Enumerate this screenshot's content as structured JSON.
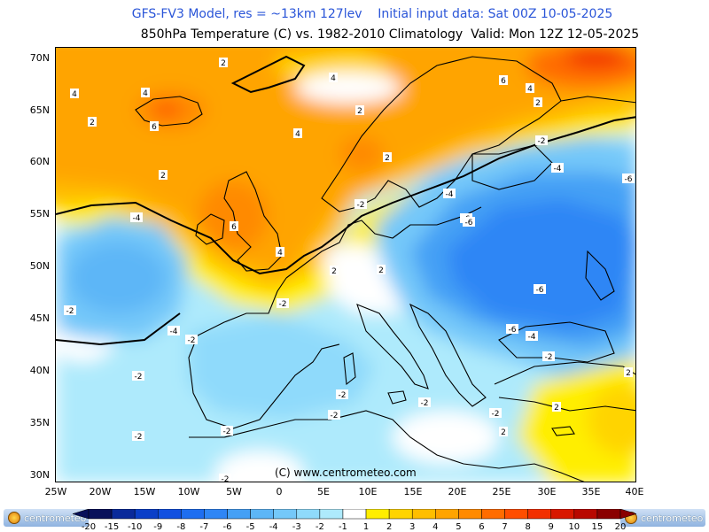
{
  "header": {
    "line1": "GFS-FV3 Model, res = ~13km 127lev    Initial input data: Sat 00Z 10-05-2025",
    "line2": "850hPa Temperature (C) vs. 1982-2010 Climatology  Valid: Mon 12Z 12-05-2025"
  },
  "map": {
    "copyright": "(C) www.centrometeo.com",
    "lat_labels": [
      "70N",
      "65N",
      "60N",
      "55N",
      "50N",
      "45N",
      "40N",
      "35N",
      "30N"
    ],
    "lon_labels": [
      "25W",
      "20W",
      "15W",
      "10W",
      "5W",
      "0",
      "5E",
      "10E",
      "15E",
      "20E",
      "25E",
      "30E",
      "35E",
      "40E"
    ],
    "contour_labels": [
      "2",
      "4",
      "4",
      "2",
      "6",
      "2",
      "4",
      "2",
      "2",
      "6",
      "4",
      "2",
      "4",
      "2",
      "-2",
      "-4",
      "-6",
      "-4",
      "-6",
      "-4",
      "-2",
      "-6",
      "-6",
      "-4",
      "-2",
      "-4",
      "-2",
      "-2",
      "-2",
      "-2",
      "-2",
      "-2",
      "2",
      "2",
      "-2",
      "-2",
      "-2",
      "2",
      "4",
      "6",
      "-6",
      "2",
      "-2",
      "-2"
    ]
  },
  "colorbar": {
    "ticks": [
      "-20",
      "-15",
      "-10",
      "-9",
      "-8",
      "-7",
      "-6",
      "-5",
      "-4",
      "-3",
      "-2",
      "-1",
      "1",
      "2",
      "3",
      "4",
      "5",
      "6",
      "7",
      "8",
      "9",
      "10",
      "15",
      "20"
    ],
    "colors": [
      "#08105a",
      "#0a2a9a",
      "#0b3fc8",
      "#1150e0",
      "#1e6ef0",
      "#2f86f5",
      "#45a0f5",
      "#5db6f7",
      "#74c8f9",
      "#8fdafb",
      "#aeeafc",
      "#ffffff",
      "#ffee00",
      "#ffd400",
      "#ffbe00",
      "#ffa400",
      "#ff8a00",
      "#ff6c00",
      "#ff4e00",
      "#f23000",
      "#d81800",
      "#b80800",
      "#8a0000"
    ],
    "logo_text": "centrometeo"
  }
}
